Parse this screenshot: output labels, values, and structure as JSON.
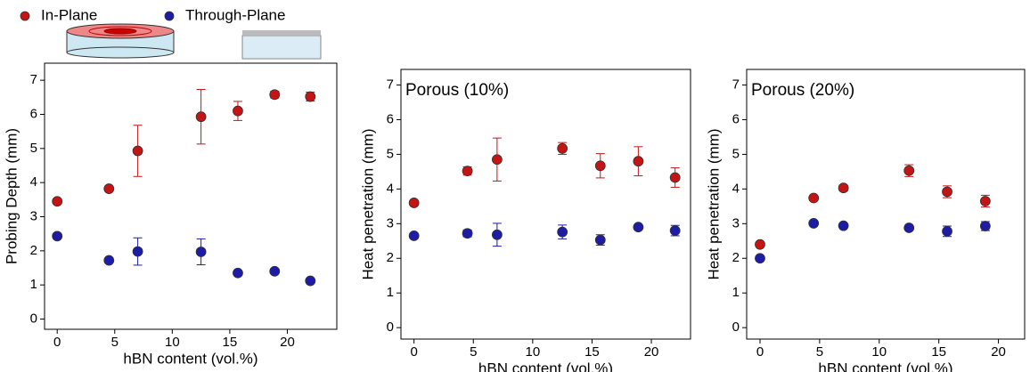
{
  "chart_data": [
    {
      "type": "scatter",
      "x_label": "hBN content (vol.%)",
      "y_label": "Probing Depth (mm)",
      "xlim": [
        -1.1,
        24.3
      ],
      "ylim": [
        -0.3,
        7.5
      ],
      "xticks": [
        0,
        5,
        10,
        15,
        20
      ],
      "yticks": [
        0,
        1,
        2,
        3,
        4,
        5,
        6,
        7
      ],
      "x": [
        0,
        4.5,
        7,
        12.5,
        15.7,
        18.9,
        22
      ],
      "series": [
        {
          "name": "In-Plane",
          "color": "#c41414",
          "values": [
            3.45,
            3.82,
            4.93,
            5.93,
            6.1,
            6.58,
            6.52
          ],
          "errors": [
            0.07,
            0.07,
            0.75,
            0.8,
            0.28,
            0.1,
            0.13
          ]
        },
        {
          "name": "Through-Plane",
          "color": "#1c1ca6",
          "values": [
            2.43,
            1.72,
            1.98,
            1.97,
            1.35,
            1.4,
            1.12
          ],
          "errors": [
            0.05,
            0.05,
            0.4,
            0.38,
            0.05,
            0.05,
            0.05
          ]
        }
      ]
    },
    {
      "type": "scatter",
      "x_label": "hBN content (vol.%)",
      "y_label": "Heat penetration (mm)",
      "annotation": "Porous (10%)",
      "xlim": [
        -1.1,
        23.3
      ],
      "ylim": [
        -0.33,
        7.45
      ],
      "xticks": [
        0,
        5,
        10,
        15,
        20
      ],
      "yticks": [
        0,
        1,
        2,
        3,
        4,
        5,
        6,
        7
      ],
      "x": [
        0,
        4.5,
        7,
        12.5,
        15.7,
        18.9,
        22
      ],
      "series": [
        {
          "color": "#c41414",
          "values": [
            3.6,
            4.52,
            4.85,
            5.17,
            4.67,
            4.8,
            4.33
          ],
          "errors": [
            0.05,
            0.12,
            0.62,
            0.17,
            0.35,
            0.42,
            0.28
          ]
        },
        {
          "color": "#1c1ca6",
          "values": [
            2.65,
            2.72,
            2.68,
            2.76,
            2.53,
            2.9,
            2.8
          ],
          "errors": [
            0.05,
            0.1,
            0.33,
            0.2,
            0.15,
            0.05,
            0.15
          ]
        }
      ]
    },
    {
      "type": "scatter",
      "x_label": "hBN content (vol.%)",
      "y_label": "Heat penetration (mm)",
      "annotation": "Porous (20%)",
      "xlim": [
        -1.12,
        22.2
      ],
      "ylim": [
        -0.33,
        7.45
      ],
      "xticks": [
        0,
        5,
        10,
        15,
        20
      ],
      "yticks": [
        0,
        1,
        2,
        3,
        4,
        5,
        6,
        7
      ],
      "x": [
        0,
        4.5,
        7,
        12.5,
        15.7,
        18.9
      ],
      "series": [
        {
          "color": "#c41414",
          "values": [
            2.4,
            3.74,
            4.03,
            4.53,
            3.92,
            3.65
          ],
          "errors": [
            0.05,
            0.05,
            0.08,
            0.17,
            0.17,
            0.17
          ]
        },
        {
          "color": "#1c1ca6",
          "values": [
            2.0,
            3.01,
            2.94,
            2.88,
            2.78,
            2.93
          ],
          "errors": [
            0.03,
            0.05,
            0.05,
            0.05,
            0.15,
            0.13
          ]
        }
      ]
    }
  ]
}
